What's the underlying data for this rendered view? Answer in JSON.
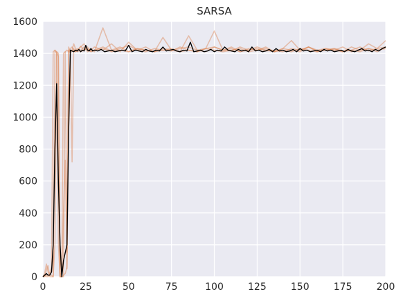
{
  "chart_data": {
    "type": "line",
    "title": "SARSA",
    "xlabel": "",
    "ylabel": "",
    "xlim": [
      0,
      200
    ],
    "ylim": [
      0,
      1600
    ],
    "xticks": [
      0,
      25,
      50,
      75,
      100,
      125,
      150,
      175,
      200
    ],
    "yticks": [
      0,
      200,
      400,
      600,
      800,
      1000,
      1200,
      1400,
      1600
    ],
    "grid": true,
    "legend": "none",
    "colors": {
      "background": "#eaeaf2",
      "grid": "#ffffff",
      "runs": "#dd8452",
      "mean": "#000000",
      "text": "#262626"
    },
    "runs_opacity": 0.45,
    "series": [
      {
        "role": "mean",
        "x": [
          0,
          1,
          2,
          3,
          4,
          5,
          6,
          7,
          8,
          9,
          10,
          11,
          12,
          13,
          14,
          15,
          16,
          17,
          18,
          19,
          20,
          21,
          22,
          23,
          24,
          25,
          26,
          27,
          28,
          29,
          30,
          32,
          34,
          36,
          38,
          40,
          42,
          44,
          46,
          48,
          50,
          52,
          54,
          56,
          58,
          60,
          62,
          64,
          66,
          68,
          70,
          72,
          74,
          76,
          78,
          80,
          82,
          84,
          86,
          88,
          90,
          92,
          94,
          96,
          98,
          100,
          102,
          104,
          106,
          108,
          110,
          112,
          114,
          116,
          118,
          120,
          122,
          124,
          126,
          128,
          130,
          132,
          134,
          136,
          138,
          140,
          142,
          144,
          146,
          148,
          150,
          152,
          154,
          156,
          158,
          160,
          162,
          164,
          166,
          168,
          170,
          172,
          174,
          176,
          178,
          180,
          182,
          184,
          186,
          188,
          190,
          192,
          194,
          196,
          198,
          200
        ],
        "y": [
          0,
          10,
          20,
          10,
          10,
          30,
          200,
          800,
          1210,
          600,
          200,
          0,
          100,
          150,
          200,
          900,
          1420,
          1415,
          1410,
          1420,
          1415,
          1425,
          1410,
          1420,
          1415,
          1450,
          1420,
          1415,
          1430,
          1415,
          1420,
          1415,
          1425,
          1410,
          1415,
          1420,
          1410,
          1415,
          1420,
          1415,
          1450,
          1410,
          1420,
          1415,
          1410,
          1425,
          1415,
          1410,
          1420,
          1415,
          1440,
          1415,
          1420,
          1425,
          1415,
          1410,
          1420,
          1415,
          1470,
          1410,
          1415,
          1420,
          1410,
          1415,
          1425,
          1410,
          1420,
          1415,
          1440,
          1420,
          1415,
          1410,
          1425,
          1415,
          1420,
          1410,
          1440,
          1415,
          1420,
          1410,
          1415,
          1425,
          1410,
          1430,
          1415,
          1420,
          1410,
          1415,
          1425,
          1410,
          1430,
          1415,
          1420,
          1410,
          1415,
          1420,
          1410,
          1425,
          1415,
          1420,
          1410,
          1415,
          1420,
          1410,
          1425,
          1415,
          1410,
          1420,
          1430,
          1415,
          1420,
          1410,
          1425,
          1415,
          1430,
          1440
        ]
      },
      {
        "role": "run",
        "x": [
          0,
          1,
          2,
          3,
          4,
          5,
          6,
          7,
          8,
          9,
          10,
          11,
          12,
          13,
          14,
          15,
          16,
          17,
          18,
          19,
          20,
          22,
          24,
          26,
          28,
          30,
          35,
          40,
          45,
          50,
          55,
          60,
          65,
          70,
          75,
          80,
          85,
          90,
          95,
          100,
          105,
          110,
          115,
          120,
          125,
          130,
          135,
          140,
          145,
          150,
          155,
          160,
          165,
          170,
          175,
          180,
          185,
          190,
          195,
          200
        ],
        "y": [
          0,
          5,
          10,
          5,
          20,
          60,
          1410,
          1420,
          1400,
          700,
          0,
          30,
          1400,
          1410,
          1420,
          1410,
          1430,
          1440,
          1420,
          1410,
          1415,
          1445,
          1420,
          1430,
          1410,
          1420,
          1440,
          1415,
          1430,
          1450,
          1420,
          1410,
          1430,
          1420,
          1415,
          1440,
          1420,
          1410,
          1430,
          1440,
          1420,
          1415,
          1440,
          1420,
          1430,
          1415,
          1420,
          1410,
          1430,
          1420,
          1440,
          1415,
          1420,
          1430,
          1415,
          1420,
          1440,
          1415,
          1430,
          1480
        ]
      },
      {
        "role": "run",
        "x": [
          0,
          1,
          2,
          3,
          4,
          5,
          6,
          7,
          8,
          9,
          10,
          11,
          12,
          13,
          14,
          15,
          16,
          17,
          18,
          19,
          20,
          22,
          24,
          26,
          28,
          30,
          35,
          40,
          45,
          50,
          55,
          60,
          65,
          70,
          75,
          80,
          85,
          90,
          95,
          100,
          105,
          110,
          115,
          120,
          125,
          130,
          135,
          140,
          145,
          150,
          155,
          160,
          165,
          170,
          175,
          180,
          185,
          190,
          195,
          200
        ],
        "y": [
          0,
          20,
          80,
          30,
          10,
          10,
          0,
          200,
          1410,
          1380,
          0,
          0,
          400,
          730,
          150,
          1420,
          1400,
          720,
          1430,
          1410,
          1420,
          1440,
          1460,
          1420,
          1430,
          1410,
          1560,
          1420,
          1440,
          1410,
          1430,
          1420,
          1410,
          1500,
          1420,
          1430,
          1440,
          1420,
          1410,
          1440,
          1420,
          1430,
          1410,
          1420,
          1440,
          1420,
          1410,
          1430,
          1420,
          1410,
          1440,
          1420,
          1430,
          1420,
          1410,
          1440,
          1420,
          1430,
          1410,
          1440
        ]
      },
      {
        "role": "run",
        "x": [
          0,
          1,
          2,
          3,
          4,
          5,
          6,
          7,
          8,
          9,
          10,
          11,
          12,
          13,
          14,
          15,
          16,
          17,
          18,
          19,
          20,
          22,
          24,
          26,
          28,
          30,
          35,
          40,
          45,
          50,
          55,
          60,
          65,
          70,
          75,
          80,
          85,
          90,
          95,
          100,
          105,
          110,
          115,
          120,
          125,
          130,
          135,
          140,
          145,
          150,
          155,
          160,
          165,
          170,
          175,
          180,
          185,
          190,
          195,
          200
        ],
        "y": [
          0,
          0,
          40,
          70,
          0,
          0,
          0,
          1420,
          1410,
          1400,
          0,
          0,
          0,
          1410,
          50,
          1440,
          1410,
          1420,
          1460,
          1430,
          1410,
          1420,
          1440,
          1410,
          1420,
          1440,
          1420,
          1460,
          1410,
          1470,
          1420,
          1440,
          1410,
          1430,
          1420,
          1410,
          1510,
          1420,
          1430,
          1540,
          1420,
          1440,
          1410,
          1430,
          1420,
          1440,
          1410,
          1430,
          1480,
          1420,
          1440,
          1410,
          1430,
          1420,
          1440,
          1410,
          1420,
          1460,
          1430,
          1440
        ]
      },
      {
        "role": "run",
        "x": [
          0,
          1,
          2,
          3,
          4,
          5,
          6,
          7,
          8,
          9,
          10,
          11,
          12,
          13,
          14,
          15,
          16,
          17,
          18,
          19,
          20,
          22,
          24,
          26,
          28,
          30,
          35,
          40,
          45,
          50,
          55,
          60,
          65,
          70,
          75,
          80,
          85,
          90,
          95,
          100,
          105,
          110,
          115,
          120,
          125,
          130,
          135,
          140,
          145,
          150,
          155,
          160,
          165,
          170,
          175,
          180,
          185,
          190,
          195,
          200
        ],
        "y": [
          0,
          10,
          0,
          0,
          10,
          30,
          100,
          900,
          1220,
          200,
          0,
          0,
          10,
          20,
          60,
          900,
          1400,
          1420,
          1410,
          1420,
          1430,
          1410,
          1420,
          1440,
          1410,
          1420,
          1430,
          1410,
          1420,
          1410,
          1430,
          1420,
          1410,
          1420,
          1430,
          1410,
          1420,
          1410,
          1430,
          1420,
          1410,
          1420,
          1430,
          1410,
          1420,
          1430,
          1410,
          1420,
          1410,
          1430,
          1420,
          1410,
          1420,
          1430,
          1410,
          1420,
          1410,
          1430,
          1420,
          1430
        ]
      }
    ]
  }
}
